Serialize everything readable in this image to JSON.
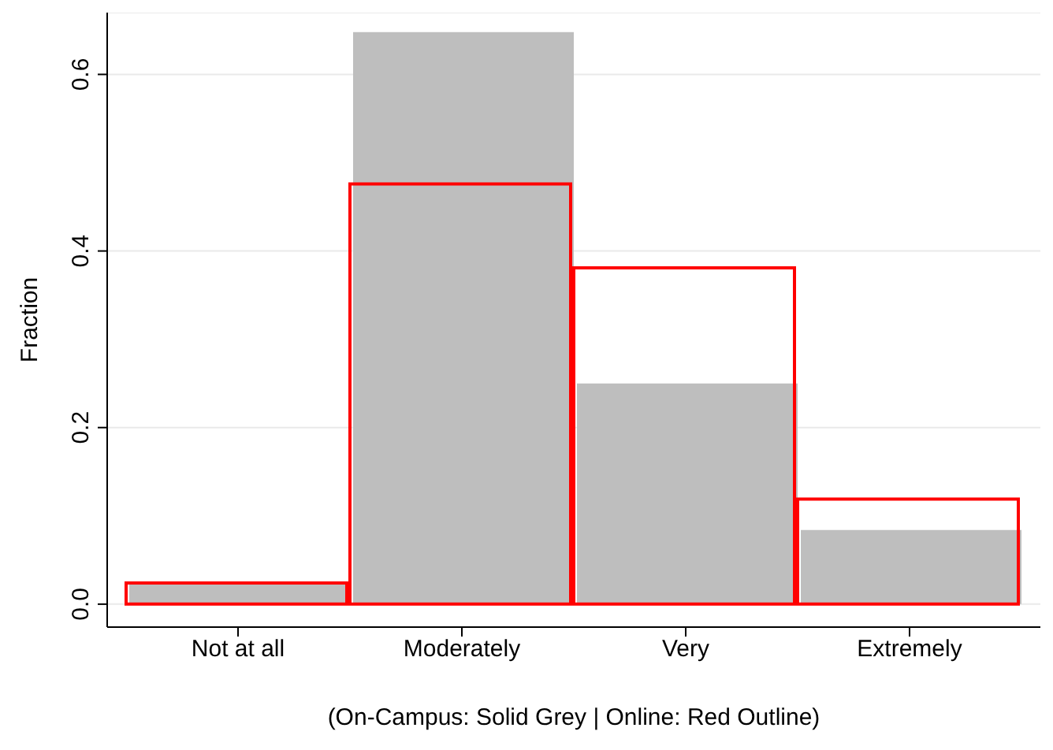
{
  "chart_data": {
    "type": "bar",
    "xlabel": "(On-Campus: Solid Grey | Online: Red Outline)",
    "ylabel": "Fraction",
    "categories": [
      "Not at all",
      "Moderately",
      "Very",
      "Extremely"
    ],
    "series": [
      {
        "color": "#bebebe",
        "values": [
          0.024,
          0.648,
          0.25,
          0.084
        ]
      },
      {
        "color": "#ff0000",
        "values": [
          0.024,
          0.476,
          0.381,
          0.119
        ]
      }
    ],
    "ylim": [
      -0.026,
      0.67
    ],
    "yticks": [
      {
        "value": 0,
        "label": "0.0"
      },
      {
        "value": 0.2,
        "label": "0.2"
      },
      {
        "value": 0.4,
        "label": "0.4"
      },
      {
        "value": 0.6,
        "label": "0.6"
      }
    ],
    "grid": "y"
  }
}
